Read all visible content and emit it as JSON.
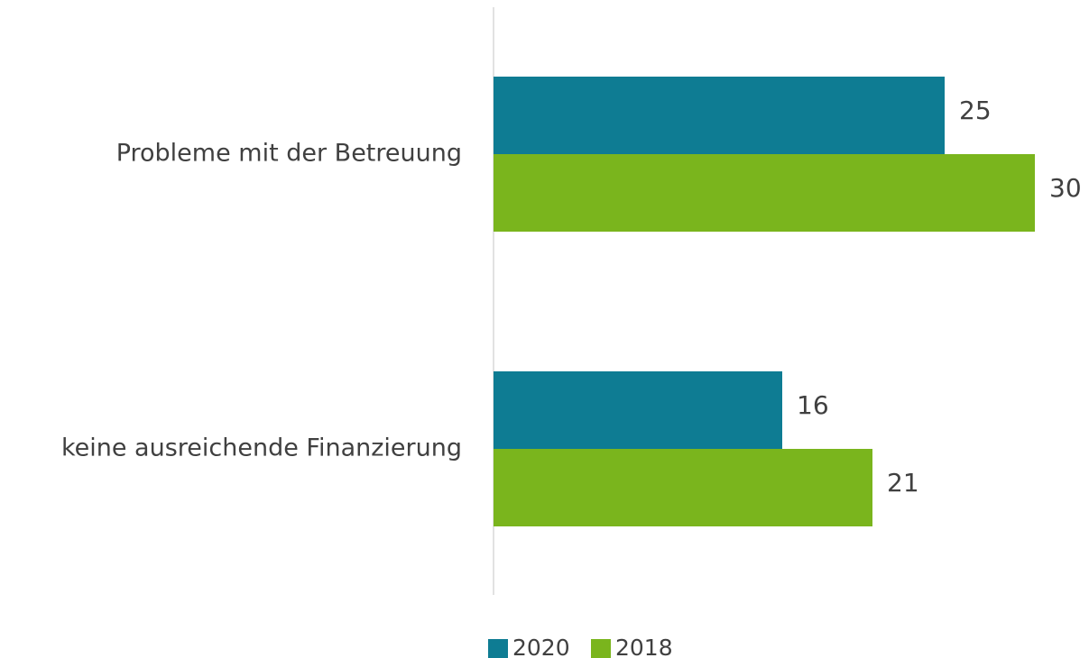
{
  "chart_data": {
    "type": "hbar",
    "categories": [
      "Probleme mit der Betreuung",
      "keine ausreichende Finanzierung"
    ],
    "series": [
      {
        "name": "2020",
        "color": "#0e7c93",
        "values": [
          25,
          16
        ]
      },
      {
        "name": "2018",
        "color": "#7ab51d",
        "values": [
          30,
          21
        ]
      }
    ],
    "xlim": [
      0,
      33
    ]
  }
}
